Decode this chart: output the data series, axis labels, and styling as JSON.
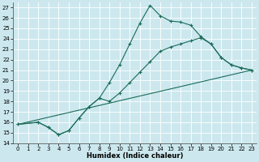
{
  "title": "",
  "xlabel": "Humidex (Indice chaleur)",
  "bg_color": "#cce8ee",
  "grid_color": "#ffffff",
  "line_color": "#1a6b5a",
  "xlim_min": -0.5,
  "xlim_max": 23.5,
  "ylim_min": 14,
  "ylim_max": 27.5,
  "xticks": [
    0,
    1,
    2,
    3,
    4,
    5,
    6,
    7,
    8,
    9,
    10,
    11,
    12,
    13,
    14,
    15,
    16,
    17,
    18,
    19,
    20,
    21,
    22,
    23
  ],
  "yticks": [
    14,
    15,
    16,
    17,
    18,
    19,
    20,
    21,
    22,
    23,
    24,
    25,
    26,
    27
  ],
  "line1_x": [
    0,
    2,
    3,
    4,
    5,
    6,
    7,
    8,
    9,
    10,
    11,
    12,
    13,
    14,
    15,
    16,
    17,
    18,
    19,
    20,
    21,
    22,
    23
  ],
  "line1_y": [
    15.8,
    16.0,
    15.5,
    14.8,
    15.2,
    16.4,
    17.5,
    18.3,
    19.8,
    21.5,
    23.5,
    25.5,
    27.2,
    26.2,
    25.7,
    25.6,
    25.3,
    24.2,
    23.5,
    22.2,
    21.5,
    21.2,
    21.0
  ],
  "line2_x": [
    0,
    2,
    3,
    4,
    5,
    6,
    7,
    8,
    9,
    10,
    11,
    12,
    13,
    14,
    15,
    16,
    17,
    18,
    19,
    20,
    21,
    22,
    23
  ],
  "line2_y": [
    15.8,
    16.0,
    15.5,
    14.8,
    15.2,
    16.4,
    17.5,
    18.3,
    18.0,
    18.8,
    19.8,
    20.8,
    21.8,
    22.8,
    23.2,
    23.5,
    23.8,
    24.1,
    23.5,
    22.2,
    21.5,
    21.2,
    21.0
  ],
  "line3_x": [
    0,
    23
  ],
  "line3_y": [
    15.8,
    21.0
  ],
  "tick_fontsize": 5,
  "xlabel_fontsize": 6,
  "linewidth": 0.8,
  "markersize": 3
}
